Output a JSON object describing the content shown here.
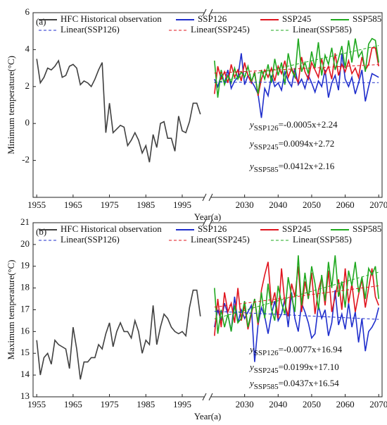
{
  "chart_data": [
    {
      "type": "line",
      "panel_label": "(a)",
      "ylabel": "Minimum temperature(°C)",
      "xlabel": "Year(a)",
      "xlim": [
        1954,
        2071
      ],
      "xbreak": [
        2001,
        2020
      ],
      "xticks": [
        1955,
        1965,
        1975,
        1985,
        1995,
        2030,
        2040,
        2050,
        2060,
        2070
      ],
      "ylim": [
        -4,
        6
      ],
      "yticks": [
        -2,
        0,
        2,
        4,
        6
      ],
      "series": [
        {
          "name": "HFC Historical observation",
          "color": "#404040",
          "x": [
            1955,
            1956,
            1957,
            1958,
            1959,
            1960,
            1961,
            1962,
            1963,
            1964,
            1965,
            1966,
            1967,
            1968,
            1969,
            1970,
            1971,
            1972,
            1973,
            1974,
            1975,
            1976,
            1977,
            1978,
            1979,
            1980,
            1981,
            1982,
            1983,
            1984,
            1985,
            1986,
            1987,
            1988,
            1989,
            1990,
            1991,
            1992,
            1993,
            1994,
            1995,
            1996,
            1997,
            1998,
            1999,
            2000
          ],
          "values": [
            3.5,
            2.2,
            2.5,
            3.0,
            2.9,
            3.1,
            3.4,
            2.5,
            2.6,
            3.1,
            3.2,
            3.0,
            2.1,
            2.3,
            2.2,
            2.0,
            2.4,
            2.9,
            3.3,
            -0.5,
            1.1,
            -0.5,
            -0.3,
            -0.1,
            -0.2,
            -1.2,
            -0.9,
            -0.5,
            -0.9,
            -1.6,
            -1.2,
            -2.1,
            -0.6,
            -1.3,
            0.0,
            0.1,
            -0.8,
            -0.8,
            -1.5,
            0.4,
            -0.4,
            -0.5,
            0.1,
            1.1,
            1.1,
            0.5
          ]
        },
        {
          "name": "SSP126",
          "color": "#1f2ecc",
          "x": [
            2021,
            2022,
            2023,
            2024,
            2025,
            2026,
            2027,
            2028,
            2029,
            2030,
            2031,
            2032,
            2033,
            2034,
            2035,
            2036,
            2037,
            2038,
            2039,
            2040,
            2041,
            2042,
            2043,
            2044,
            2045,
            2046,
            2047,
            2048,
            2049,
            2050,
            2051,
            2052,
            2053,
            2054,
            2055,
            2056,
            2057,
            2058,
            2059,
            2060,
            2061,
            2062,
            2063,
            2064,
            2065,
            2066,
            2067,
            2068,
            2069,
            2070
          ],
          "values": [
            2.4,
            2.0,
            2.6,
            2.2,
            2.9,
            1.9,
            2.3,
            2.5,
            3.8,
            2.1,
            2.6,
            2.3,
            2.0,
            1.6,
            0.3,
            1.9,
            1.5,
            2.6,
            2.0,
            2.2,
            1.8,
            2.8,
            2.3,
            2.0,
            3.0,
            2.1,
            2.4,
            1.9,
            2.6,
            2.2,
            1.7,
            2.3,
            2.0,
            2.9,
            1.4,
            2.2,
            2.6,
            1.8,
            3.8,
            2.4,
            2.0,
            2.5,
            1.6,
            2.2,
            2.9,
            1.2,
            2.0,
            2.7,
            2.6,
            2.5
          ]
        },
        {
          "name": "SSP245",
          "color": "#e0141e",
          "x": [
            2021,
            2022,
            2023,
            2024,
            2025,
            2026,
            2027,
            2028,
            2029,
            2030,
            2031,
            2032,
            2033,
            2034,
            2035,
            2036,
            2037,
            2038,
            2039,
            2040,
            2041,
            2042,
            2043,
            2044,
            2045,
            2046,
            2047,
            2048,
            2049,
            2050,
            2051,
            2052,
            2053,
            2054,
            2055,
            2056,
            2057,
            2058,
            2059,
            2060,
            2061,
            2062,
            2063,
            2064,
            2065,
            2066,
            2067,
            2068,
            2069,
            2070
          ],
          "values": [
            1.6,
            3.1,
            2.4,
            2.8,
            2.2,
            3.2,
            2.5,
            2.9,
            2.3,
            3.3,
            2.6,
            2.2,
            2.8,
            1.5,
            2.4,
            2.9,
            2.5,
            3.0,
            2.3,
            3.1,
            2.7,
            3.4,
            2.5,
            3.0,
            2.6,
            2.2,
            3.6,
            2.8,
            2.4,
            3.3,
            2.9,
            2.5,
            3.5,
            2.7,
            3.1,
            2.4,
            3.8,
            2.6,
            3.2,
            2.8,
            3.4,
            2.7,
            3.0,
            2.5,
            3.6,
            2.9,
            3.2,
            4.1,
            4.1,
            3.1
          ]
        },
        {
          "name": "SSP585",
          "color": "#1fa81f",
          "x": [
            2021,
            2022,
            2023,
            2024,
            2025,
            2026,
            2027,
            2028,
            2029,
            2030,
            2031,
            2032,
            2033,
            2034,
            2035,
            2036,
            2037,
            2038,
            2039,
            2040,
            2041,
            2042,
            2043,
            2044,
            2045,
            2046,
            2047,
            2048,
            2049,
            2050,
            2051,
            2052,
            2053,
            2054,
            2055,
            2056,
            2057,
            2058,
            2059,
            2060,
            2061,
            2062,
            2063,
            2064,
            2065,
            2066,
            2067,
            2068,
            2069,
            2070
          ],
          "values": [
            3.4,
            1.4,
            2.9,
            2.1,
            2.6,
            2.2,
            3.0,
            2.4,
            2.8,
            2.5,
            3.1,
            2.3,
            2.7,
            1.6,
            2.9,
            2.4,
            3.2,
            2.2,
            3.5,
            2.6,
            3.3,
            2.1,
            3.8,
            2.9,
            2.5,
            4.6,
            2.8,
            3.3,
            2.7,
            3.9,
            3.0,
            4.4,
            2.6,
            3.7,
            3.2,
            4.1,
            2.9,
            3.5,
            4.2,
            3.0,
            4.5,
            3.3,
            4.6,
            3.6,
            3.9,
            2.8,
            4.3,
            4.6,
            4.5,
            3.3
          ]
        },
        {
          "name": "Linear(SSP126)",
          "color": "#1f2ecc",
          "dashed": true,
          "x": [
            2021,
            2070
          ],
          "values": [
            2.24,
            2.21
          ]
        },
        {
          "name": "Linear(SSP245)",
          "color": "#e0141e",
          "dashed": true,
          "x": [
            2021,
            2070
          ],
          "values": [
            2.73,
            3.19
          ]
        },
        {
          "name": "Linear(SSP585)",
          "color": "#1fa81f",
          "dashed": true,
          "x": [
            2021,
            2070
          ],
          "values": [
            2.2,
            4.22
          ]
        }
      ],
      "annotations": [
        {
          "y": "y",
          "sub": "SSP126",
          "rhs": "=-0.0005x+2.24"
        },
        {
          "y": "y",
          "sub": "SSP245",
          "rhs": "=0.0094x+2.72"
        },
        {
          "y": "y",
          "sub": "SSP585",
          "rhs": "=0.0412x+2.16"
        }
      ]
    },
    {
      "type": "line",
      "panel_label": "(b)",
      "ylabel": "Maximum temperature(°C)",
      "xlabel": "Year(a)",
      "xlim": [
        1954,
        2071
      ],
      "xbreak": [
        2001,
        2020
      ],
      "xticks": [
        1955,
        1965,
        1975,
        1985,
        1995,
        2030,
        2040,
        2050,
        2060,
        2070
      ],
      "ylim": [
        13,
        21
      ],
      "yticks": [
        13,
        14,
        15,
        16,
        17,
        18,
        19,
        20,
        21
      ],
      "series": [
        {
          "name": "HFC Historical observation",
          "color": "#404040",
          "x": [
            1955,
            1956,
            1957,
            1958,
            1959,
            1960,
            1961,
            1962,
            1963,
            1964,
            1965,
            1966,
            1967,
            1968,
            1969,
            1970,
            1971,
            1972,
            1973,
            1974,
            1975,
            1976,
            1977,
            1978,
            1979,
            1980,
            1981,
            1982,
            1983,
            1984,
            1985,
            1986,
            1987,
            1988,
            1989,
            1990,
            1991,
            1992,
            1993,
            1994,
            1995,
            1996,
            1997,
            1998,
            1999,
            2000
          ],
          "values": [
            15.6,
            14.0,
            14.8,
            15.0,
            14.5,
            15.6,
            15.4,
            15.3,
            15.2,
            14.3,
            16.2,
            15.2,
            13.8,
            14.6,
            14.6,
            14.8,
            14.8,
            15.4,
            15.2,
            15.9,
            16.4,
            15.3,
            16.0,
            16.4,
            16.0,
            16.0,
            15.7,
            16.5,
            16.0,
            15.0,
            15.6,
            15.4,
            17.2,
            15.4,
            16.2,
            16.8,
            16.6,
            16.2,
            16.0,
            15.9,
            16.0,
            15.8,
            17.1,
            17.9,
            17.9,
            16.7
          ]
        },
        {
          "name": "SSP126",
          "color": "#1f2ecc",
          "x": [
            2021,
            2022,
            2023,
            2024,
            2025,
            2026,
            2027,
            2028,
            2029,
            2030,
            2031,
            2032,
            2033,
            2034,
            2035,
            2036,
            2037,
            2038,
            2039,
            2040,
            2041,
            2042,
            2043,
            2044,
            2045,
            2046,
            2047,
            2048,
            2049,
            2050,
            2051,
            2052,
            2053,
            2054,
            2055,
            2056,
            2057,
            2058,
            2059,
            2060,
            2061,
            2062,
            2063,
            2064,
            2065,
            2066,
            2067,
            2068,
            2069,
            2070
          ],
          "values": [
            16.2,
            17.0,
            16.5,
            17.3,
            16.8,
            16.0,
            17.6,
            16.4,
            17.0,
            16.6,
            16.9,
            17.2,
            14.6,
            16.3,
            17.1,
            16.7,
            15.9,
            16.8,
            17.4,
            16.5,
            16.8,
            17.5,
            16.2,
            17.8,
            16.6,
            16.0,
            17.3,
            16.9,
            16.4,
            15.7,
            15.9,
            17.2,
            16.6,
            17.0,
            15.8,
            16.4,
            17.9,
            16.3,
            16.8,
            16.1,
            17.3,
            16.2,
            16.9,
            15.5,
            16.6,
            15.1,
            16.0,
            16.2,
            16.5,
            17.1
          ]
        },
        {
          "name": "SSP245",
          "color": "#e0141e",
          "x": [
            2021,
            2022,
            2023,
            2024,
            2025,
            2026,
            2027,
            2028,
            2029,
            2030,
            2031,
            2032,
            2033,
            2034,
            2035,
            2036,
            2037,
            2038,
            2039,
            2040,
            2041,
            2042,
            2043,
            2044,
            2045,
            2046,
            2047,
            2048,
            2049,
            2050,
            2051,
            2052,
            2053,
            2054,
            2055,
            2056,
            2057,
            2058,
            2059,
            2060,
            2061,
            2062,
            2063,
            2064,
            2065,
            2066,
            2067,
            2068,
            2069,
            2070
          ],
          "values": [
            15.8,
            17.5,
            16.2,
            17.8,
            16.9,
            17.3,
            16.4,
            18.0,
            16.5,
            17.2,
            16.1,
            16.8,
            17.5,
            16.3,
            17.9,
            18.6,
            19.2,
            17.2,
            17.8,
            16.6,
            18.9,
            17.3,
            16.7,
            18.2,
            17.6,
            19.0,
            16.9,
            18.3,
            17.5,
            18.7,
            16.8,
            17.9,
            18.5,
            17.2,
            18.8,
            16.9,
            17.6,
            18.4,
            17.0,
            18.9,
            17.3,
            18.2,
            16.9,
            17.7,
            18.4,
            17.1,
            18.0,
            18.9,
            17.6,
            17.2
          ]
        },
        {
          "name": "SSP585",
          "color": "#1fa81f",
          "x": [
            2021,
            2022,
            2023,
            2024,
            2025,
            2026,
            2027,
            2028,
            2029,
            2030,
            2031,
            2032,
            2033,
            2034,
            2035,
            2036,
            2037,
            2038,
            2039,
            2040,
            2041,
            2042,
            2043,
            2044,
            2045,
            2046,
            2047,
            2048,
            2049,
            2050,
            2051,
            2052,
            2053,
            2054,
            2055,
            2056,
            2057,
            2058,
            2059,
            2060,
            2061,
            2062,
            2063,
            2064,
            2065,
            2066,
            2067,
            2068,
            2069,
            2070
          ],
          "values": [
            18.0,
            15.9,
            17.0,
            16.2,
            16.8,
            16.0,
            17.2,
            16.4,
            16.6,
            17.4,
            16.2,
            16.9,
            17.5,
            16.4,
            17.8,
            16.6,
            18.2,
            17.0,
            16.5,
            18.1,
            17.3,
            16.8,
            18.5,
            17.6,
            16.9,
            19.5,
            17.2,
            18.7,
            17.5,
            19.0,
            18.2,
            17.0,
            18.6,
            17.4,
            19.2,
            18.0,
            19.5,
            17.6,
            18.3,
            17.1,
            18.8,
            18.1,
            19.2,
            17.8,
            18.5,
            17.5,
            18.9,
            18.6,
            19.0,
            17.5
          ]
        },
        {
          "name": "Linear(SSP126)",
          "color": "#1f2ecc",
          "dashed": true,
          "x": [
            2021,
            2070
          ],
          "values": [
            16.93,
            16.56
          ]
        },
        {
          "name": "Linear(SSP245)",
          "color": "#e0141e",
          "dashed": true,
          "x": [
            2021,
            2070
          ],
          "values": [
            17.12,
            18.1
          ]
        },
        {
          "name": "Linear(SSP585)",
          "color": "#1fa81f",
          "dashed": true,
          "x": [
            2021,
            2070
          ],
          "values": [
            16.58,
            18.73
          ]
        }
      ],
      "annotations": [
        {
          "y": "y",
          "sub": "SSP126",
          "rhs": "=-0.0077x+16.94"
        },
        {
          "y": "y",
          "sub": "SSP245",
          "rhs": "=0.0199x+17.10"
        },
        {
          "y": "y",
          "sub": "SSP585",
          "rhs": "=0.0437x+16.54"
        }
      ]
    }
  ]
}
